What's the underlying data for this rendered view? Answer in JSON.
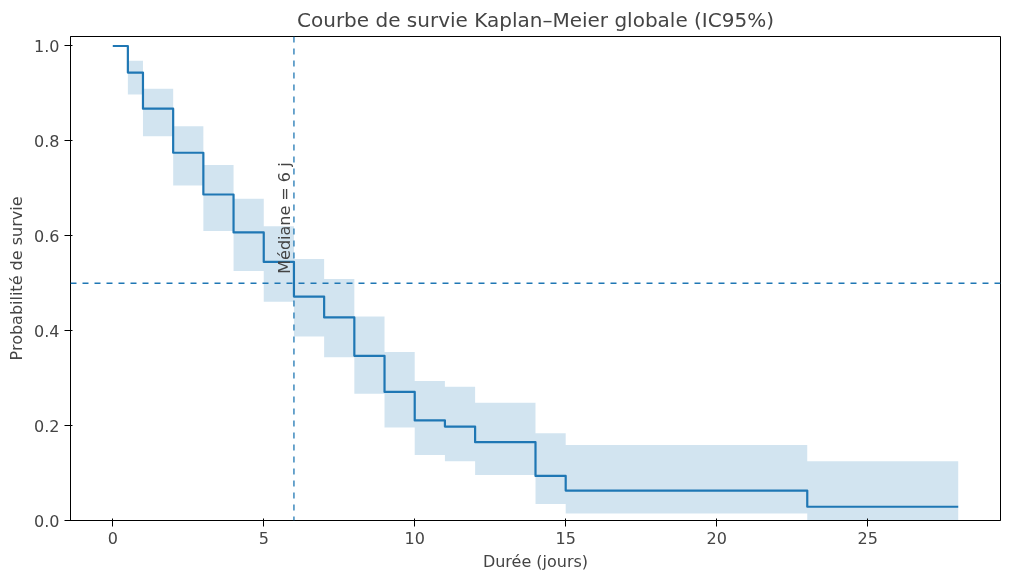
{
  "chart_data": {
    "type": "step",
    "title": "Courbe de survie Kaplan–Meier globale (IC95%)",
    "xlabel": "Durée (jours)",
    "ylabel": "Probabilité de survie",
    "x": [
      0,
      0.5,
      1,
      2,
      3,
      4,
      5,
      6,
      7,
      8,
      9,
      10,
      11,
      12,
      14,
      15,
      23,
      28
    ],
    "series": [
      {
        "color": "#1f77b4",
        "values": [
          1.0,
          0.944,
          0.868,
          0.775,
          0.687,
          0.607,
          0.545,
          0.472,
          0.428,
          0.347,
          0.271,
          0.211,
          0.198,
          0.165,
          0.094,
          0.063,
          0.029,
          0.029
        ],
        "lower": [
          1.0,
          0.898,
          0.81,
          0.706,
          0.61,
          0.526,
          0.461,
          0.388,
          0.344,
          0.267,
          0.196,
          0.138,
          0.125,
          0.096,
          0.035,
          0.015,
          0.0,
          0.0
        ],
        "upper": [
          1.0,
          0.969,
          0.91,
          0.831,
          0.749,
          0.678,
          0.62,
          0.551,
          0.509,
          0.43,
          0.355,
          0.294,
          0.282,
          0.248,
          0.184,
          0.159,
          0.125,
          0.125
        ]
      }
    ],
    "xlim": [
      -1.4,
      29.4
    ],
    "ylim": [
      0,
      1.02
    ],
    "xticks": [
      0,
      5,
      10,
      15,
      20,
      25
    ],
    "yticks": [
      {
        "value": 0,
        "label": "0.0"
      },
      {
        "value": 0.2,
        "label": "0.2"
      },
      {
        "value": 0.4,
        "label": "0.4"
      },
      {
        "value": 0.6,
        "label": "0.6"
      },
      {
        "value": 0.8,
        "label": "0.8"
      },
      {
        "value": 1.0,
        "label": "1.0"
      }
    ],
    "ref_lines": [
      {
        "axis": "x",
        "value": 6,
        "label": "Médiane = 6 j",
        "color": "#1f77b4",
        "line_style": "dashed"
      },
      {
        "axis": "y",
        "value": 0.5,
        "color": "#1f77b4",
        "line_style": "dashed"
      }
    ],
    "grid": false,
    "line_style": "solid"
  }
}
